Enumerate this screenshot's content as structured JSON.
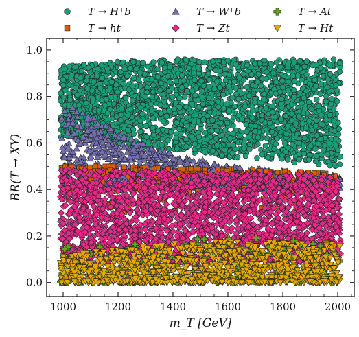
{
  "chart_data": {
    "type": "scatter",
    "xlabel": "m_T [GeV]",
    "ylabel": "BR(T → XY)",
    "xlim": [
      940,
      2060
    ],
    "ylim": [
      -0.06,
      1.05
    ],
    "x_ticks": [
      1000,
      1200,
      1400,
      1600,
      1800,
      2000
    ],
    "y_ticks": [
      0.0,
      0.2,
      0.4,
      0.6,
      0.8,
      1.0
    ],
    "x_tick_labels": [
      "1000",
      "1200",
      "1400",
      "1600",
      "1800",
      "2000"
    ],
    "y_tick_labels": [
      "0.0",
      "0.2",
      "0.4",
      "0.6",
      "0.8",
      "1.0"
    ],
    "legend_placement": "top, above plot, 3 columns",
    "x_range_points": [
      990,
      2010
    ],
    "series": [
      {
        "name": "T → H⁺b",
        "marker": "circle",
        "color": "#1b9e77",
        "band": [
          {
            "x": 1000,
            "ymin": 0.62,
            "ymax": 0.93
          },
          {
            "x": 1200,
            "ymin": 0.6,
            "ymax": 0.95
          },
          {
            "x": 1400,
            "ymin": 0.56,
            "ymax": 0.96
          },
          {
            "x": 1600,
            "ymin": 0.54,
            "ymax": 0.96
          },
          {
            "x": 1800,
            "ymin": 0.52,
            "ymax": 0.96
          },
          {
            "x": 2000,
            "ymin": 0.5,
            "ymax": 0.96
          }
        ]
      },
      {
        "name": "T → ht",
        "marker": "square",
        "color": "#d95f02",
        "band": [
          {
            "x": 1000,
            "ymin": 0.3,
            "ymax": 0.5
          },
          {
            "x": 1200,
            "ymin": 0.3,
            "ymax": 0.5
          },
          {
            "x": 1400,
            "ymin": 0.3,
            "ymax": 0.49
          },
          {
            "x": 1600,
            "ymin": 0.3,
            "ymax": 0.49
          },
          {
            "x": 1800,
            "ymin": 0.3,
            "ymax": 0.48
          },
          {
            "x": 2000,
            "ymin": 0.3,
            "ymax": 0.47
          }
        ]
      },
      {
        "name": "T → W⁺b",
        "marker": "triangle-up",
        "color": "#7570b3",
        "band": [
          {
            "x": 1000,
            "ymin": 0.4,
            "ymax": 0.78
          },
          {
            "x": 1100,
            "ymin": 0.4,
            "ymax": 0.72
          },
          {
            "x": 1200,
            "ymin": 0.4,
            "ymax": 0.64
          },
          {
            "x": 1400,
            "ymin": 0.4,
            "ymax": 0.56
          },
          {
            "x": 1600,
            "ymin": 0.4,
            "ymax": 0.5
          },
          {
            "x": 2000,
            "ymin": 0.4,
            "ymax": 0.46
          }
        ]
      },
      {
        "name": "T → Zt",
        "marker": "diamond",
        "color": "#e7298a",
        "band": [
          {
            "x": 1000,
            "ymin": 0.08,
            "ymax": 0.49
          },
          {
            "x": 1200,
            "ymin": 0.08,
            "ymax": 0.48
          },
          {
            "x": 1400,
            "ymin": 0.08,
            "ymax": 0.48
          },
          {
            "x": 1600,
            "ymin": 0.08,
            "ymax": 0.47
          },
          {
            "x": 1800,
            "ymin": 0.08,
            "ymax": 0.47
          },
          {
            "x": 2000,
            "ymin": 0.08,
            "ymax": 0.46
          }
        ]
      },
      {
        "name": "T → At",
        "marker": "plus",
        "color": "#66a61e",
        "band": [
          {
            "x": 1000,
            "ymin": 0.0,
            "ymax": 0.15
          },
          {
            "x": 1500,
            "ymin": 0.0,
            "ymax": 0.2
          },
          {
            "x": 2000,
            "ymin": 0.0,
            "ymax": 0.18
          }
        ]
      },
      {
        "name": "T → Ht",
        "marker": "triangle-down",
        "color": "#e6ab02",
        "band": [
          {
            "x": 1000,
            "ymin": 0.0,
            "ymax": 0.12
          },
          {
            "x": 1500,
            "ymin": 0.0,
            "ymax": 0.18
          },
          {
            "x": 2000,
            "ymin": 0.0,
            "ymax": 0.17
          }
        ]
      }
    ]
  }
}
